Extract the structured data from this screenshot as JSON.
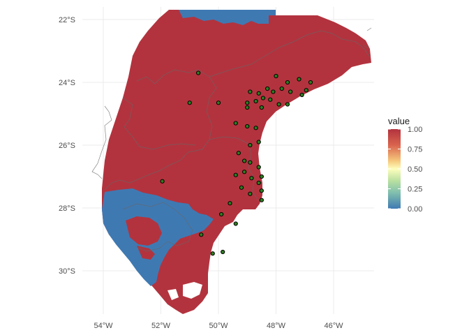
{
  "chart_data": {
    "type": "heatmap",
    "legend": {
      "title": "value",
      "ticks": [
        "1.00",
        "0.75",
        "0.50",
        "0.25",
        "0.00"
      ],
      "colors": [
        "#b2333e",
        "#d9634e",
        "#fefebd",
        "#8fcb9b",
        "#3f79b2"
      ]
    },
    "x_axis": {
      "ticks": [
        {
          "lon": -54,
          "label": "54°W"
        },
        {
          "lon": -52,
          "label": "52°W"
        },
        {
          "lon": -50,
          "label": "50°W"
        },
        {
          "lon": -48,
          "label": "48°W"
        },
        {
          "lon": -46,
          "label": "46°W"
        }
      ]
    },
    "y_axis": {
      "ticks": [
        {
          "lat": -22,
          "label": "22°S"
        },
        {
          "lat": -24,
          "label": "24°S"
        },
        {
          "lat": -26,
          "label": "26°S"
        },
        {
          "lat": -28,
          "label": "28°S"
        },
        {
          "lat": -30,
          "label": "30°S"
        }
      ]
    },
    "xlim": [
      -55.5,
      -44.6
    ],
    "ylim": [
      -31.5,
      -21.5
    ],
    "grid": true,
    "legend_position": "right",
    "points": [
      [
        -50.7,
        -23.7
      ],
      [
        -51.0,
        -24.65
      ],
      [
        -50.0,
        -24.65
      ],
      [
        -49.4,
        -25.3
      ],
      [
        -48.0,
        -23.8
      ],
      [
        -47.6,
        -24.0
      ],
      [
        -47.2,
        -23.9
      ],
      [
        -46.8,
        -24.0
      ],
      [
        -48.3,
        -24.2
      ],
      [
        -48.1,
        -24.3
      ],
      [
        -47.8,
        -24.2
      ],
      [
        -47.5,
        -24.3
      ],
      [
        -47.1,
        -24.4
      ],
      [
        -46.95,
        -24.25
      ],
      [
        -48.6,
        -24.35
      ],
      [
        -48.7,
        -24.6
      ],
      [
        -48.9,
        -24.3
      ],
      [
        -49.0,
        -24.65
      ],
      [
        -48.45,
        -24.5
      ],
      [
        -48.2,
        -24.55
      ],
      [
        -47.9,
        -24.7
      ],
      [
        -47.6,
        -24.7
      ],
      [
        -48.5,
        -24.8
      ],
      [
        -49.0,
        -24.8
      ],
      [
        -49.0,
        -25.4
      ],
      [
        -48.7,
        -25.45
      ],
      [
        -48.9,
        -26.0
      ],
      [
        -48.6,
        -25.9
      ],
      [
        -49.3,
        -26.25
      ],
      [
        -49.1,
        -26.5
      ],
      [
        -48.9,
        -26.55
      ],
      [
        -48.6,
        -26.7
      ],
      [
        -49.4,
        -26.95
      ],
      [
        -49.1,
        -26.85
      ],
      [
        -48.85,
        -27.05
      ],
      [
        -48.5,
        -27.0
      ],
      [
        -48.6,
        -27.2
      ],
      [
        -49.2,
        -27.35
      ],
      [
        -48.9,
        -27.55
      ],
      [
        -48.5,
        -27.45
      ],
      [
        -48.5,
        -27.75
      ],
      [
        -51.95,
        -27.15
      ],
      [
        -49.6,
        -27.85
      ],
      [
        -49.9,
        -28.2
      ],
      [
        -49.4,
        -28.5
      ],
      [
        -50.6,
        -28.85
      ],
      [
        -50.2,
        -29.45
      ],
      [
        -49.85,
        -29.4
      ]
    ],
    "notes_values": "raster of probabilities; land area mostly 1.00 (red), southern coastal region and northeastern strip 0.00 (blue)"
  }
}
